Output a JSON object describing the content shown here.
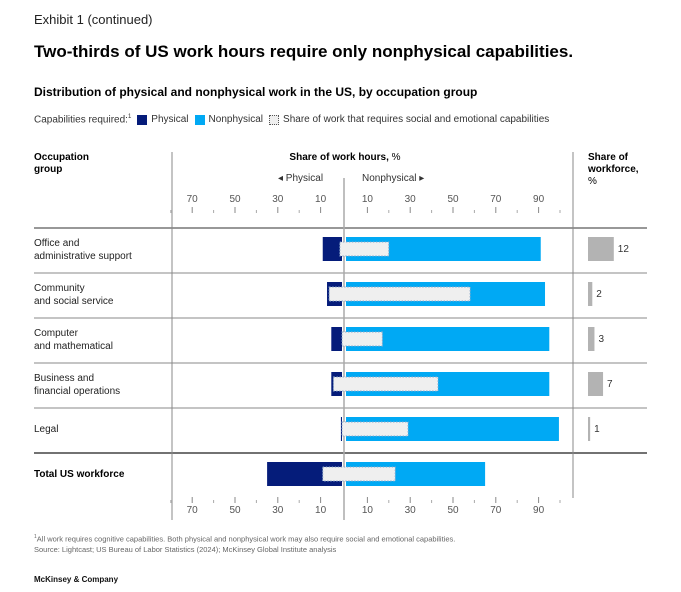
{
  "header": {
    "exhibit": "Exhibit 1 (continued)",
    "title": "Two-thirds of US work hours require only nonphysical capabilities.",
    "subtitle": "Distribution of physical and nonphysical work in the US, by occupation group"
  },
  "legend": {
    "prefix": "Capabilities required:",
    "prefix_sup": "1",
    "items": [
      {
        "label": "Physical",
        "color": "#051c7a"
      },
      {
        "label": "Nonphysical",
        "color": "#00a9f4"
      },
      {
        "label": "Share of work that requires social and emotional capabilities",
        "color": "#efefef"
      }
    ]
  },
  "columns": {
    "occupation": "Occupation group",
    "occupation_line1": "Occupation",
    "occupation_line2": "group",
    "share_bold": "Share of work hours,",
    "share_unit": " %",
    "physical_dir": "◂ Physical",
    "nonphysical_dir": "Nonphysical ▸",
    "workforce_line1": "Share of",
    "workforce_line2": "workforce,",
    "workforce_unit": "%"
  },
  "chart_data": {
    "type": "bar",
    "orientation": "horizontal-diverging",
    "title": "Two-thirds of US work hours require only nonphysical capabilities.",
    "subtitle": "Distribution of physical and nonphysical work in the US, by occupation group",
    "xlabel": "Share of work hours, %",
    "left_axis": {
      "label": "Physical",
      "ticks": [
        70,
        50,
        30,
        10
      ],
      "range": [
        0,
        75
      ]
    },
    "right_axis": {
      "label": "Nonphysical",
      "ticks": [
        10,
        30,
        50,
        70,
        90
      ],
      "range": [
        0,
        100
      ]
    },
    "categories": [
      "Office and administrative support",
      "Community and social service",
      "Computer and mathematical",
      "Business and financial operations",
      "Legal",
      "Total US workforce"
    ],
    "category_lines": [
      [
        "Office and",
        "administrative support"
      ],
      [
        "Community",
        "and social service"
      ],
      [
        "Computer",
        "and mathematical"
      ],
      [
        "Business and",
        "financial operations"
      ],
      [
        "Legal"
      ],
      [
        "Total US workforce"
      ]
    ],
    "series": [
      {
        "name": "Physical",
        "color": "#051c7a",
        "values": [
          9,
          7,
          5,
          5,
          0.5,
          35
        ]
      },
      {
        "name": "Nonphysical",
        "color": "#00a9f4",
        "values": [
          91,
          93,
          95,
          95,
          99.5,
          65
        ]
      },
      {
        "name": "Social and emotional (physical side)",
        "color": "#efefef",
        "values": [
          1,
          6,
          0,
          4,
          0,
          9
        ]
      },
      {
        "name": "Social and emotional (nonphysical side)",
        "color": "#efefef",
        "values": [
          20,
          58,
          17,
          43,
          29,
          23
        ]
      }
    ],
    "workforce_share": {
      "label": "Share of workforce, %",
      "values": [
        12,
        2,
        3,
        7,
        1,
        null
      ],
      "color": "#b3b3b3"
    },
    "legend_position": "top-left",
    "grid": false
  },
  "footnotes": {
    "note": "All work requires cognitive capabilities. Both physical and nonphysical work may also require social and emotional capabilities.",
    "note_sup": "1",
    "source": "Source: Lightcast; US Bureau of Labor Statistics (2024); McKinsey Global Institute analysis"
  },
  "brand": "McKinsey & Company"
}
